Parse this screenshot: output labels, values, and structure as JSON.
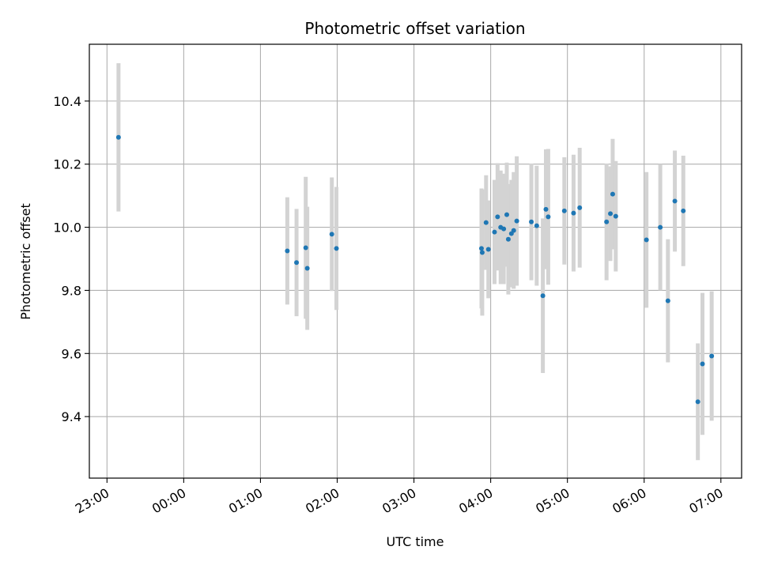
{
  "chart_data": {
    "type": "scatter",
    "title": "Photometric offset variation",
    "xlabel": "UTC time",
    "ylabel": "Photometric offset",
    "grid": true,
    "x_unit": "hours since 23:00",
    "xlim": [
      -0.23,
      8.27
    ],
    "ylim": [
      9.205,
      10.58
    ],
    "x_ticks": [
      {
        "value": 0,
        "label": "23:00"
      },
      {
        "value": 1,
        "label": "00:00"
      },
      {
        "value": 2,
        "label": "01:00"
      },
      {
        "value": 3,
        "label": "02:00"
      },
      {
        "value": 4,
        "label": "03:00"
      },
      {
        "value": 5,
        "label": "04:00"
      },
      {
        "value": 6,
        "label": "05:00"
      },
      {
        "value": 7,
        "label": "06:00"
      },
      {
        "value": 8,
        "label": "07:00"
      }
    ],
    "y_ticks": [
      {
        "value": 9.4,
        "label": "9.4"
      },
      {
        "value": 9.6,
        "label": "9.6"
      },
      {
        "value": 9.8,
        "label": "9.8"
      },
      {
        "value": 10.0,
        "label": "10.0"
      },
      {
        "value": 10.2,
        "label": "10.2"
      },
      {
        "value": 10.4,
        "label": "10.4"
      }
    ],
    "colors": {
      "point": "#1f77b4",
      "errorbar": "#d3d3d3",
      "grid": "#b0b0b0"
    },
    "points": [
      {
        "x": 0.15,
        "y": 10.285,
        "err": 0.235
      },
      {
        "x": 2.35,
        "y": 9.925,
        "err": 0.17
      },
      {
        "x": 2.47,
        "y": 9.888,
        "err": 0.17
      },
      {
        "x": 2.59,
        "y": 9.935,
        "err": 0.225
      },
      {
        "x": 2.61,
        "y": 9.87,
        "err": 0.195
      },
      {
        "x": 2.93,
        "y": 9.978,
        "err": 0.18
      },
      {
        "x": 2.99,
        "y": 9.933,
        "err": 0.195
      },
      {
        "x": 4.88,
        "y": 9.933,
        "err": 0.19
      },
      {
        "x": 4.89,
        "y": 9.92,
        "err": 0.2
      },
      {
        "x": 4.94,
        "y": 10.015,
        "err": 0.15
      },
      {
        "x": 4.97,
        "y": 9.93,
        "err": 0.155
      },
      {
        "x": 5.05,
        "y": 9.985,
        "err": 0.165
      },
      {
        "x": 5.09,
        "y": 10.033,
        "err": 0.17
      },
      {
        "x": 5.13,
        "y": 10.0,
        "err": 0.18
      },
      {
        "x": 5.17,
        "y": 9.995,
        "err": 0.175
      },
      {
        "x": 5.21,
        "y": 10.04,
        "err": 0.165
      },
      {
        "x": 5.23,
        "y": 9.962,
        "err": 0.175
      },
      {
        "x": 5.27,
        "y": 9.98,
        "err": 0.17
      },
      {
        "x": 5.3,
        "y": 9.99,
        "err": 0.185
      },
      {
        "x": 5.34,
        "y": 10.02,
        "err": 0.205
      },
      {
        "x": 5.53,
        "y": 10.017,
        "err": 0.185
      },
      {
        "x": 5.6,
        "y": 10.005,
        "err": 0.19
      },
      {
        "x": 5.68,
        "y": 9.783,
        "err": 0.245
      },
      {
        "x": 5.72,
        "y": 10.057,
        "err": 0.19
      },
      {
        "x": 5.75,
        "y": 10.033,
        "err": 0.215
      },
      {
        "x": 5.96,
        "y": 10.052,
        "err": 0.17
      },
      {
        "x": 6.08,
        "y": 10.045,
        "err": 0.185
      },
      {
        "x": 6.16,
        "y": 10.062,
        "err": 0.19
      },
      {
        "x": 6.51,
        "y": 10.017,
        "err": 0.185
      },
      {
        "x": 6.56,
        "y": 10.043,
        "err": 0.15
      },
      {
        "x": 6.59,
        "y": 10.105,
        "err": 0.175
      },
      {
        "x": 6.63,
        "y": 10.035,
        "err": 0.175
      },
      {
        "x": 7.03,
        "y": 9.96,
        "err": 0.215
      },
      {
        "x": 7.21,
        "y": 10.0,
        "err": 0.2
      },
      {
        "x": 7.31,
        "y": 9.767,
        "err": 0.195
      },
      {
        "x": 7.4,
        "y": 10.083,
        "err": 0.16
      },
      {
        "x": 7.51,
        "y": 10.052,
        "err": 0.175
      },
      {
        "x": 7.7,
        "y": 9.447,
        "err": 0.185
      },
      {
        "x": 7.76,
        "y": 9.567,
        "err": 0.225
      },
      {
        "x": 7.88,
        "y": 9.592,
        "err": 0.205
      }
    ]
  }
}
